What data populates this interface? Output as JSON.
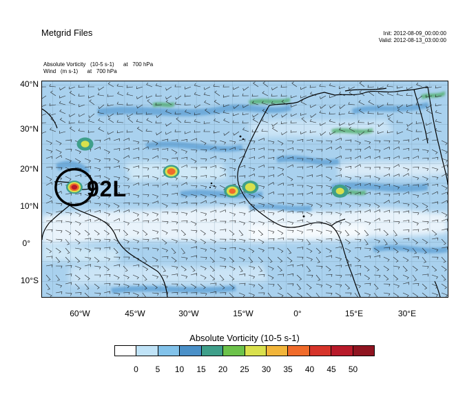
{
  "header": {
    "title": "Metgrid Files",
    "init": "Init: 2012-08-09_00:00:00",
    "valid": "Valid: 2012-08-13_03:00:00",
    "field1": "Absolute Vorticity   (10-5 s-1)      at   700 hPa",
    "field2": "Wind   (m s-1)      at   700 hPa"
  },
  "map": {
    "type": "heatmap",
    "lat_labels": [
      "40°N",
      "30°N",
      "20°N",
      "10°N",
      "0°",
      "10°S"
    ],
    "lon_labels": [
      "60°W",
      "45°W",
      "30°W",
      "15°W",
      "0°",
      "15°E",
      "30°E"
    ],
    "lon_range": [
      -73,
      40
    ],
    "lat_range": [
      -14,
      41
    ],
    "storm_marker": {
      "label": "92L",
      "lon": -64,
      "lat": 14
    },
    "vorticity_maxima": [
      {
        "lon": -64,
        "lat": 14,
        "value": 45
      },
      {
        "lon": -37,
        "lat": 18,
        "value": 40
      },
      {
        "lon": -20,
        "lat": 13,
        "value": 35
      },
      {
        "lon": -15,
        "lat": 14,
        "value": 30
      },
      {
        "lon": 10,
        "lat": 13,
        "value": 25
      },
      {
        "lon": -61,
        "lat": 25,
        "value": 25
      }
    ]
  },
  "colorbar": {
    "title": "Absolute Vorticity  (10-5 s-1)",
    "labels": [
      "0",
      "5",
      "10",
      "15",
      "20",
      "25",
      "30",
      "35",
      "40",
      "45",
      "50"
    ],
    "colors": [
      "#ffffff",
      "#c0e3f7",
      "#82c2ea",
      "#4a90c8",
      "#3f9f8a",
      "#6cc24a",
      "#d9e04d",
      "#f2b53a",
      "#f06b2a",
      "#d6342a",
      "#b81a2a",
      "#8f1420"
    ]
  }
}
